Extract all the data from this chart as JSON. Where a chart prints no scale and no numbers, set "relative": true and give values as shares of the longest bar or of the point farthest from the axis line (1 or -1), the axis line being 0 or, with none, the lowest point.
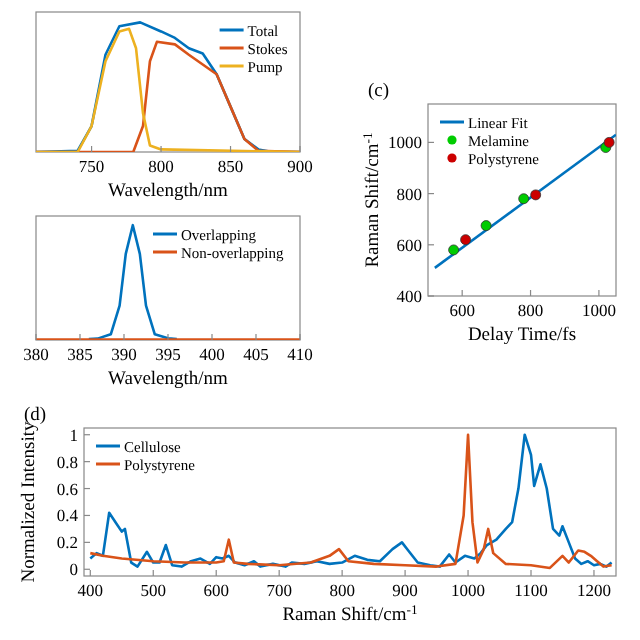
{
  "chart_data": [
    {
      "type": "line",
      "xlabel": "Wavelength/nm",
      "relative": true,
      "tick_labels": "x",
      "xlim": [
        710,
        900
      ],
      "xticks": [
        750,
        800,
        850,
        900
      ],
      "legend": "top right",
      "line_style": "solid",
      "series": [
        {
          "name": "Total",
          "color": "#0072bd",
          "x": [
            710,
            740,
            750,
            760,
            770,
            785,
            800,
            810,
            820,
            830,
            840,
            850,
            860,
            870,
            880,
            900
          ],
          "values": [
            0,
            0.01,
            0.2,
            0.75,
            0.97,
            1,
            0.93,
            0.88,
            0.8,
            0.76,
            0.6,
            0.35,
            0.1,
            0.02,
            0,
            0
          ]
        },
        {
          "name": "Stokes",
          "color": "#d95319",
          "x": [
            710,
            780,
            787,
            792,
            797,
            810,
            820,
            840,
            850,
            860,
            870,
            900
          ],
          "values": [
            0,
            0,
            0.2,
            0.7,
            0.85,
            0.83,
            0.75,
            0.6,
            0.35,
            0.1,
            0.01,
            0
          ]
        },
        {
          "name": "Pump",
          "color": "#edb120",
          "x": [
            710,
            740,
            750,
            760,
            770,
            777,
            782,
            787,
            792,
            800,
            900
          ],
          "values": [
            0,
            0,
            0.2,
            0.7,
            0.93,
            0.95,
            0.8,
            0.3,
            0.05,
            0.02,
            0
          ]
        }
      ]
    },
    {
      "type": "line",
      "xlabel": "Wavelength/nm",
      "relative": true,
      "tick_labels": "x",
      "xlim": [
        380,
        410
      ],
      "xticks": [
        380,
        385,
        390,
        395,
        400,
        405,
        410
      ],
      "legend": "top right",
      "line_style": "solid",
      "series": [
        {
          "name": "Overlapping",
          "color": "#0072bd",
          "x": [
            386,
            387,
            388.5,
            389.5,
            390.2,
            391,
            391.8,
            392.5,
            393.5,
            395,
            396
          ],
          "values": [
            0.008,
            0.012,
            0.05,
            0.3,
            0.75,
            1,
            0.75,
            0.3,
            0.05,
            0.015,
            0.008
          ]
        },
        {
          "name": "Non-overlapping",
          "color": "#d95319",
          "x": [
            380,
            410
          ],
          "values": [
            0.005,
            0.005
          ]
        }
      ]
    },
    {
      "type": "scatter",
      "xlabel": "Delay Time/fs",
      "ylabel": "Raman Shift/cm$^{-1}$",
      "annotations": [
        "(c)"
      ],
      "xlim": [
        500,
        1050
      ],
      "xticks": [
        600,
        800,
        1000
      ],
      "ylim": [
        400,
        1150
      ],
      "yticks": [
        400,
        600,
        800,
        1000
      ],
      "legend": "top left",
      "series": [
        {
          "name": "Linear Fit",
          "type": "line",
          "color": "#0072bd",
          "x": [
            520,
            1050
          ],
          "values": [
            510,
            1030
          ]
        },
        {
          "name": "Melamine",
          "color": "#00cc00",
          "x": [
            575,
            670,
            780,
            1020
          ],
          "values": [
            580,
            675,
            780,
            980
          ]
        },
        {
          "name": "Polystyrene",
          "color": "#cc0000",
          "x": [
            610,
            815,
            1030
          ],
          "values": [
            620,
            795,
            1000
          ]
        }
      ]
    },
    {
      "type": "line",
      "xlabel": "Raman Shift/cm$^{-1}$",
      "ylabel": "Normalized Intensity",
      "annotations": [
        "(d)"
      ],
      "xlim": [
        390,
        1235
      ],
      "xticks": [
        400,
        500,
        600,
        700,
        800,
        900,
        1000,
        1100,
        1200
      ],
      "ylim": [
        -0.05,
        1.05
      ],
      "yticks": [
        0,
        0.2,
        0.4,
        0.6,
        0.8,
        1
      ],
      "legend": "top left",
      "line_style": "solid",
      "series": [
        {
          "name": "Cellulose",
          "color": "#0072bd",
          "x": [
            400,
            410,
            420,
            430,
            440,
            450,
            455,
            465,
            475,
            490,
            500,
            510,
            520,
            530,
            545,
            560,
            575,
            590,
            600,
            610,
            620,
            630,
            645,
            660,
            670,
            690,
            710,
            720,
            740,
            760,
            780,
            800,
            820,
            840,
            860,
            880,
            895,
            905,
            920,
            940,
            955,
            970,
            980,
            995,
            1010,
            1020,
            1030,
            1045,
            1060,
            1070,
            1080,
            1090,
            1100,
            1105,
            1115,
            1125,
            1135,
            1145,
            1150,
            1160,
            1170,
            1180,
            1190,
            1200,
            1210,
            1220,
            1228
          ],
          "values": [
            0.08,
            0.12,
            0.1,
            0.42,
            0.35,
            0.28,
            0.3,
            0.05,
            0.02,
            0.13,
            0.05,
            0.05,
            0.18,
            0.03,
            0.02,
            0.06,
            0.08,
            0.04,
            0.09,
            0.08,
            0.1,
            0.05,
            0.03,
            0.06,
            0.02,
            0.04,
            0.02,
            0.05,
            0.04,
            0.06,
            0.04,
            0.05,
            0.1,
            0.07,
            0.06,
            0.15,
            0.2,
            0.14,
            0.05,
            0.03,
            0.02,
            0.11,
            0.05,
            0.1,
            0.08,
            0.12,
            0.18,
            0.22,
            0.3,
            0.35,
            0.6,
            1,
            0.85,
            0.62,
            0.78,
            0.6,
            0.3,
            0.25,
            0.32,
            0.2,
            0.08,
            0.04,
            0.06,
            0.03,
            0.04,
            0.02,
            0.05
          ]
        },
        {
          "name": "Polystyrene",
          "color": "#d95319",
          "x": [
            400,
            420,
            450,
            500,
            550,
            600,
            612,
            620,
            628,
            650,
            700,
            750,
            780,
            795,
            810,
            850,
            900,
            950,
            980,
            993,
            1000,
            1007,
            1015,
            1025,
            1032,
            1040,
            1060,
            1100,
            1130,
            1150,
            1160,
            1175,
            1185,
            1195,
            1205,
            1215,
            1228
          ],
          "values": [
            0.12,
            0.1,
            0.08,
            0.06,
            0.05,
            0.05,
            0.06,
            0.22,
            0.05,
            0.04,
            0.03,
            0.05,
            0.1,
            0.15,
            0.06,
            0.04,
            0.03,
            0.02,
            0.04,
            0.4,
            1,
            0.35,
            0.05,
            0.15,
            0.3,
            0.12,
            0.04,
            0.03,
            0.01,
            0.1,
            0.05,
            0.14,
            0.13,
            0.1,
            0.06,
            0.02,
            0.03
          ]
        }
      ]
    }
  ]
}
